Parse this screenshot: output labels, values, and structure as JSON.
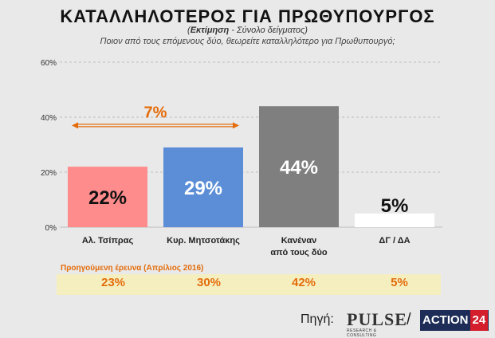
{
  "header": {
    "title": "ΚΑΤΑΛΛΗΛΟΤΕΡΟΣ  ΓΙΑ  ΠΡΩΘΥΠΟΥΡΓΟΣ",
    "subtitle_bold": "Εκτίμηση",
    "subtitle_rest": " - Σύνολο δείγματος)",
    "subtitle_open": "(",
    "question": "Ποιον από τους επόμενους δύο, θεωρείτε καταλληλότερο για Πρωθυπουργό;"
  },
  "chart_data": {
    "type": "bar",
    "categories": [
      "Αλ. Τσίπρας",
      "Κυρ. Μητσοτάκης",
      "Κανέναν από τους δύο",
      "ΔΓ / ΔΑ"
    ],
    "category_lines": [
      [
        "Αλ. Τσίπρας"
      ],
      [
        "Κυρ. Μητσοτάκης"
      ],
      [
        "Κανέναν",
        "από τους δύο"
      ],
      [
        "ΔΓ / ΔΑ"
      ]
    ],
    "values": [
      22,
      29,
      44,
      5
    ],
    "value_labels": [
      "22%",
      "29%",
      "44%",
      "5%"
    ],
    "colors": [
      "#ff8c8c",
      "#5b8ed6",
      "#7f7f7f",
      "#ffffff"
    ],
    "label_colors": [
      "#111111",
      "#ffffff",
      "#ffffff",
      "#111111"
    ],
    "ylim": [
      0,
      60
    ],
    "yticks": [
      0,
      20,
      40,
      60
    ],
    "ytick_labels": [
      "0%",
      "20%",
      "40%",
      "60%"
    ],
    "grid": true,
    "annotation": {
      "text": "7%",
      "color": "#e46c0a",
      "between": [
        0,
        1
      ],
      "at_value": 37
    }
  },
  "previous": {
    "label": "Προηγούμενη έρευνα (Απρίλιος 2016)",
    "values": [
      "23%",
      "30%",
      "42%",
      "5%"
    ]
  },
  "footer": {
    "source_label": "Πηγή:",
    "pulse_word": "PULSE",
    "pulse_sub": "RESEARCH & CONSULTING",
    "slash": "/",
    "action_text": "ACTION",
    "action_num": "24"
  }
}
